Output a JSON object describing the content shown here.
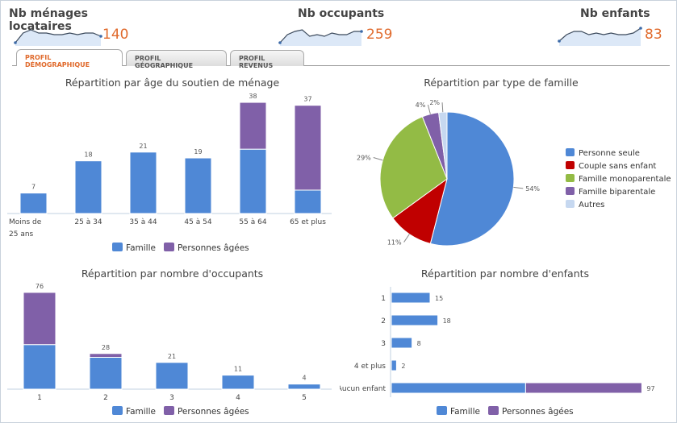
{
  "kpis": [
    {
      "title": "Nb ménages locataires",
      "value": "140",
      "spark": [
        2,
        8,
        10,
        8,
        8,
        7,
        7,
        8,
        7,
        8,
        8,
        6
      ]
    },
    {
      "title": "Nb occupants",
      "value": "259",
      "spark": [
        2,
        7,
        9,
        10,
        6,
        7,
        6,
        8,
        7,
        7,
        9,
        9
      ]
    },
    {
      "title": "Nb enfants",
      "value": "83",
      "spark": [
        3,
        7,
        9,
        9,
        7,
        8,
        7,
        8,
        7,
        7,
        8,
        11
      ]
    }
  ],
  "tabs": [
    "PROFIL DÉMOGRAPHIQUE",
    "PROFIL GÉOGRAPHIQUE",
    "PROFIL REVENUS"
  ],
  "colors": {
    "famille": "#4f88d6",
    "agees": "#8060a8",
    "couple": "#c00000",
    "mono": "#93bb45",
    "autres": "#c6d8f0"
  },
  "legend": {
    "famille": "Famille",
    "agees": "Personnes âgées"
  },
  "chart_data": [
    {
      "type": "bar",
      "title": "Répartition par âge du soutien de ménage",
      "categories": [
        "Moins de|25 ans",
        "25 à 34",
        "35 à 44",
        "45 à 54",
        "55 à 64",
        "65 et plus"
      ],
      "series": [
        {
          "name": "Famille",
          "values": [
            7,
            18,
            21,
            19,
            22,
            8
          ]
        },
        {
          "name": "Personnes âgées",
          "values": [
            0,
            0,
            0,
            0,
            16,
            29
          ]
        }
      ],
      "totals": [
        "7",
        "18",
        "21",
        "19",
        "38",
        "37"
      ]
    },
    {
      "type": "pie",
      "title": "Répartition par type de famille",
      "labels": [
        "Personne seule",
        "Couple sans enfant",
        "Famille monoparentale",
        "Famille biparentale",
        "Autres"
      ],
      "values": [
        54,
        11,
        29,
        4,
        2
      ],
      "value_labels": [
        "54%",
        "11%",
        "29%",
        "4%",
        "2%"
      ]
    },
    {
      "type": "bar",
      "title": "Répartition par nombre d'occupants",
      "categories": [
        "1",
        "2",
        "3",
        "4",
        "5"
      ],
      "series": [
        {
          "name": "Famille",
          "values": [
            35,
            25,
            21,
            11,
            4
          ]
        },
        {
          "name": "Personnes âgées",
          "values": [
            41,
            3,
            0,
            0,
            0
          ]
        }
      ],
      "totals": [
        "76",
        "28",
        "21",
        "11",
        "4"
      ]
    },
    {
      "type": "bar",
      "orientation": "horizontal",
      "title": "Répartition par nombre d'enfants",
      "categories": [
        "1",
        "2",
        "3",
        "4 et plus",
        "Aucun enfant"
      ],
      "series": [
        {
          "name": "Famille",
          "values": [
            15,
            18,
            8,
            2,
            52
          ]
        },
        {
          "name": "Personnes âgées",
          "values": [
            0,
            0,
            0,
            0,
            45
          ]
        }
      ],
      "totals": [
        "15",
        "18",
        "8",
        "2",
        "97"
      ]
    }
  ]
}
